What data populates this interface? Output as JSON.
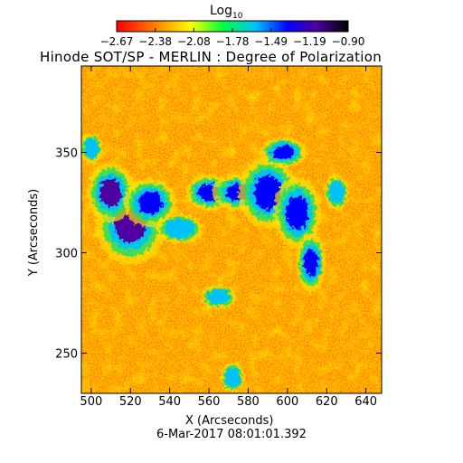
{
  "chart_data": {
    "type": "heatmap",
    "title": "Hinode SOT/SP - MERLIN : Degree of Polarization",
    "colorbar": {
      "label_base": "Log",
      "label_sub": "10",
      "ticks": [
        "−2.67",
        "−2.38",
        "−2.08",
        "−1.78",
        "−1.49",
        "−1.19",
        "−0.90"
      ],
      "range": [
        -2.67,
        -0.9
      ],
      "colormap": [
        "#ff0000",
        "#ff8000",
        "#ffff00",
        "#00ff40",
        "#00c0ff",
        "#0000ff",
        "#5000a0",
        "#000000"
      ]
    },
    "xlabel": "X (Arcseconds)",
    "ylabel": "Y (Arcseconds)",
    "xlim": [
      495,
      648
    ],
    "ylim": [
      230,
      393
    ],
    "xticks": [
      500,
      520,
      540,
      560,
      580,
      600,
      620,
      640
    ],
    "yticks": [
      250,
      300,
      350
    ],
    "timestamp": "6-Mar-2017 08:01:01.392",
    "features": [
      {
        "x": 520,
        "y": 315,
        "rx": 12,
        "ry": 14,
        "level": -1.1
      },
      {
        "x": 510,
        "y": 330,
        "rx": 8,
        "ry": 10,
        "level": -1.25
      },
      {
        "x": 530,
        "y": 325,
        "rx": 9,
        "ry": 8,
        "level": -1.35
      },
      {
        "x": 560,
        "y": 330,
        "rx": 8,
        "ry": 6,
        "level": -1.45
      },
      {
        "x": 575,
        "y": 330,
        "rx": 9,
        "ry": 6,
        "level": -1.4
      },
      {
        "x": 590,
        "y": 330,
        "rx": 10,
        "ry": 12,
        "level": -1.3
      },
      {
        "x": 605,
        "y": 320,
        "rx": 8,
        "ry": 12,
        "level": -1.4
      },
      {
        "x": 612,
        "y": 295,
        "rx": 5,
        "ry": 10,
        "level": -1.5
      },
      {
        "x": 598,
        "y": 350,
        "rx": 8,
        "ry": 5,
        "level": -1.5
      },
      {
        "x": 625,
        "y": 330,
        "rx": 4,
        "ry": 6,
        "level": -1.7
      },
      {
        "x": 565,
        "y": 278,
        "rx": 6,
        "ry": 4,
        "level": -1.6
      },
      {
        "x": 572,
        "y": 238,
        "rx": 4,
        "ry": 5,
        "level": -1.7
      },
      {
        "x": 500,
        "y": 352,
        "rx": 4,
        "ry": 5,
        "level": -1.7
      },
      {
        "x": 545,
        "y": 312,
        "rx": 8,
        "ry": 5,
        "level": -1.55
      }
    ]
  }
}
